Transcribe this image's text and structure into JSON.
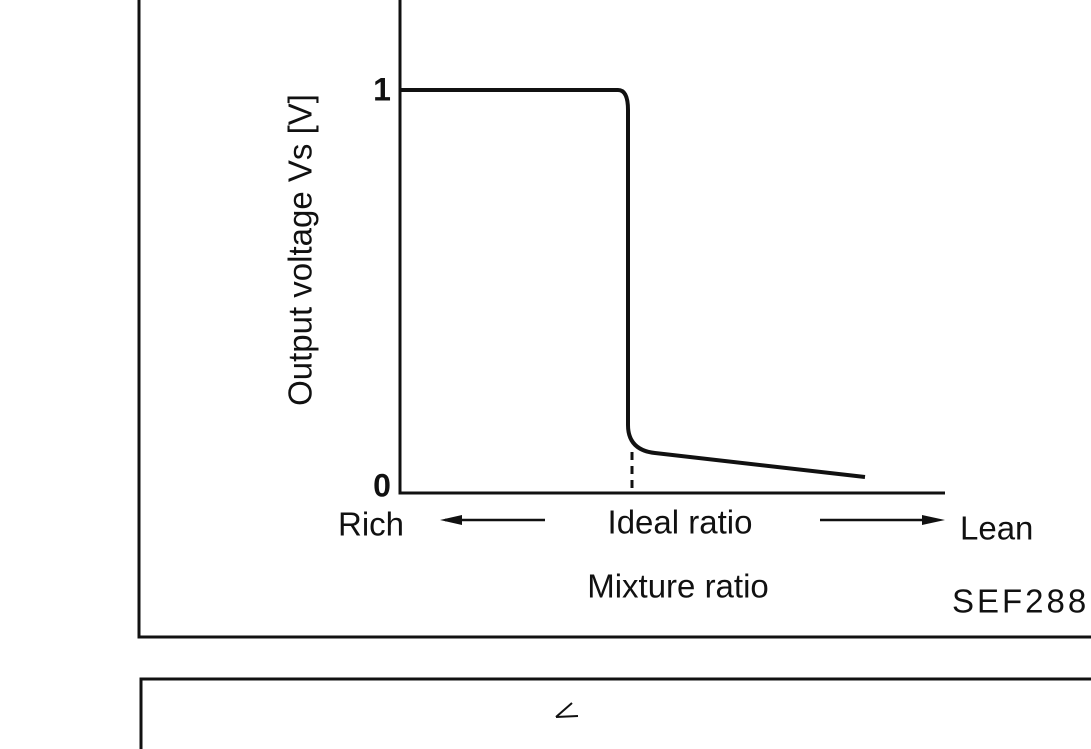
{
  "diagram": {
    "y_axis_label": "Output voltage Vs [V]",
    "y_tick_high": "1",
    "y_tick_low": "0",
    "x_left_label": "Rich",
    "x_center_label": "Ideal ratio",
    "x_right_label": "Lean",
    "x_axis_label": "Mixture ratio",
    "figure_code": "SEF288"
  }
}
